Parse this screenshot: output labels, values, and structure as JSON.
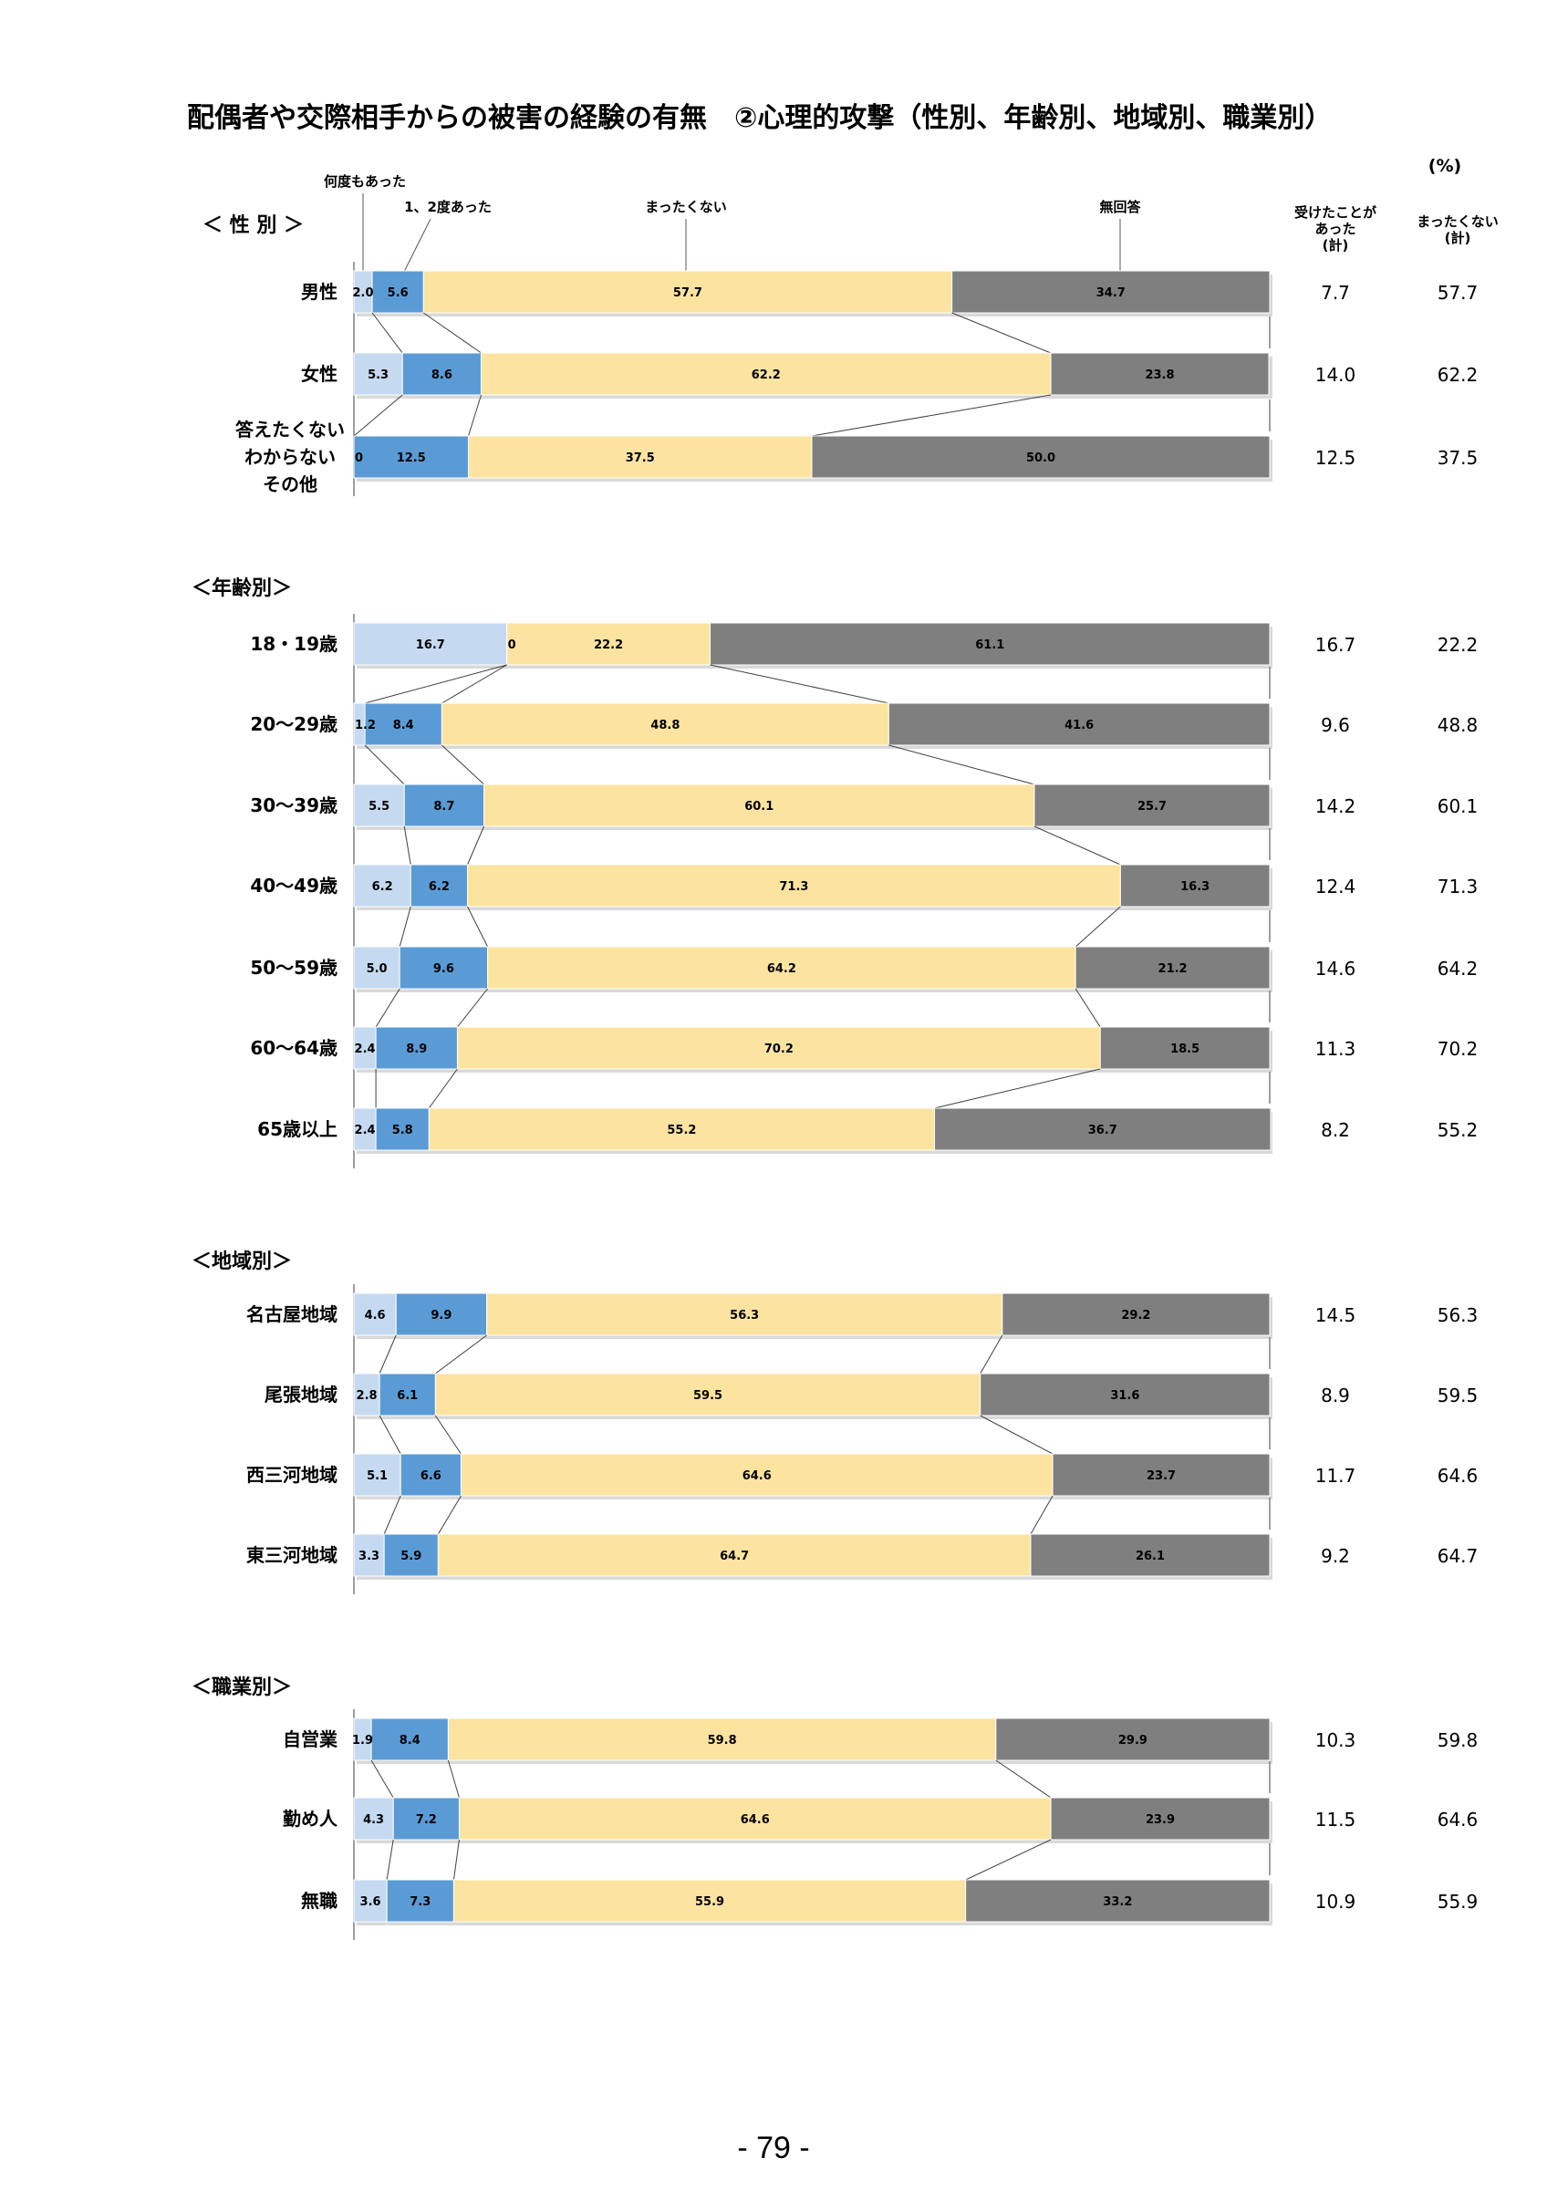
{
  "page": {
    "title": "配偶者や交際相手からの被害の経験の有無　②心理的攻撃（性別、年齢別、地域別、職業別）",
    "page_number": "- 79 -",
    "unit_label": "(%)"
  },
  "legend": {
    "many": "何度もあった",
    "once": "1、2度あった",
    "never": "まったくない",
    "noanswer": "無回答"
  },
  "summary_headers": {
    "experienced": [
      "受けたことが",
      "あった",
      "(計)"
    ],
    "never": [
      "まったくない",
      "(計)"
    ]
  },
  "colors": {
    "many": "#c5daf0",
    "once": "#5b9bd5",
    "never": "#fce4a0",
    "noanswer": "#7f7f7f"
  },
  "chart_data": {
    "type": "bar",
    "orientation": "horizontal",
    "stacked": true,
    "unit": "%",
    "xlim": [
      0,
      100
    ],
    "series_names": [
      "何度もあった",
      "1、2度あった",
      "まったくない",
      "無回答"
    ],
    "groups": [
      {
        "name": "＜ 性 別 ＞",
        "rows": [
          {
            "label": [
              "男性"
            ],
            "values": [
              "2.0",
              "5.6",
              "57.7",
              "34.7"
            ],
            "experienced_total": "7.7",
            "never_total": "57.7"
          },
          {
            "label": [
              "女性"
            ],
            "values": [
              "5.3",
              "8.6",
              "62.2",
              "23.8"
            ],
            "experienced_total": "14.0",
            "never_total": "62.2"
          },
          {
            "label": [
              "答えたくない",
              "わからない",
              "その他"
            ],
            "values": [
              "0",
              "12.5",
              "37.5",
              "50.0"
            ],
            "experienced_total": "12.5",
            "never_total": "37.5"
          }
        ]
      },
      {
        "name": "＜年齢別＞",
        "rows": [
          {
            "label": [
              "18・19歳"
            ],
            "values": [
              "16.7",
              "0",
              "22.2",
              "61.1"
            ],
            "experienced_total": "16.7",
            "never_total": "22.2"
          },
          {
            "label": [
              "20～29歳"
            ],
            "values": [
              "1.2",
              "8.4",
              "48.8",
              "41.6"
            ],
            "experienced_total": "9.6",
            "never_total": "48.8"
          },
          {
            "label": [
              "30～39歳"
            ],
            "values": [
              "5.5",
              "8.7",
              "60.1",
              "25.7"
            ],
            "experienced_total": "14.2",
            "never_total": "60.1"
          },
          {
            "label": [
              "40～49歳"
            ],
            "values": [
              "6.2",
              "6.2",
              "71.3",
              "16.3"
            ],
            "experienced_total": "12.4",
            "never_total": "71.3"
          },
          {
            "label": [
              "50～59歳"
            ],
            "values": [
              "5.0",
              "9.6",
              "64.2",
              "21.2"
            ],
            "experienced_total": "14.6",
            "never_total": "64.2"
          },
          {
            "label": [
              "60～64歳"
            ],
            "values": [
              "2.4",
              "8.9",
              "70.2",
              "18.5"
            ],
            "experienced_total": "11.3",
            "never_total": "70.2"
          },
          {
            "label": [
              "65歳以上"
            ],
            "values": [
              "2.4",
              "5.8",
              "55.2",
              "36.7"
            ],
            "experienced_total": "8.2",
            "never_total": "55.2"
          }
        ]
      },
      {
        "name": "＜地域別＞",
        "rows": [
          {
            "label": [
              "名古屋地域"
            ],
            "values": [
              "4.6",
              "9.9",
              "56.3",
              "29.2"
            ],
            "experienced_total": "14.5",
            "never_total": "56.3"
          },
          {
            "label": [
              "尾張地域"
            ],
            "values": [
              "2.8",
              "6.1",
              "59.5",
              "31.6"
            ],
            "experienced_total": "8.9",
            "never_total": "59.5"
          },
          {
            "label": [
              "西三河地域"
            ],
            "values": [
              "5.1",
              "6.6",
              "64.6",
              "23.7"
            ],
            "experienced_total": "11.7",
            "never_total": "64.6"
          },
          {
            "label": [
              "東三河地域"
            ],
            "values": [
              "3.3",
              "5.9",
              "64.7",
              "26.1"
            ],
            "experienced_total": "9.2",
            "never_total": "64.7"
          }
        ]
      },
      {
        "name": "＜職業別＞",
        "rows": [
          {
            "label": [
              "自営業"
            ],
            "values": [
              "1.9",
              "8.4",
              "59.8",
              "29.9"
            ],
            "experienced_total": "10.3",
            "never_total": "59.8"
          },
          {
            "label": [
              "勤め人"
            ],
            "values": [
              "4.3",
              "7.2",
              "64.6",
              "23.9"
            ],
            "experienced_total": "11.5",
            "never_total": "64.6"
          },
          {
            "label": [
              "無職"
            ],
            "values": [
              "3.6",
              "7.3",
              "55.9",
              "33.2"
            ],
            "experienced_total": "10.9",
            "never_total": "55.9"
          }
        ]
      }
    ]
  }
}
